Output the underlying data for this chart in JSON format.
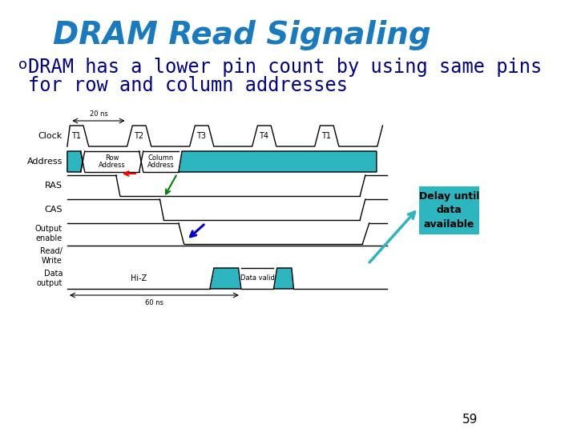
{
  "title": "DRAM Read Signaling",
  "title_color": "#1a7abf",
  "title_fontsize": 28,
  "bullet_text_line1": "DRAM has a lower pin count by using same pins",
  "bullet_text_line2": "for row and column addresses",
  "bullet_color": "#00008B",
  "bullet_fontsize": 17,
  "bg_color": "#ffffff",
  "teal_fill": "#2db5c0",
  "signal_color": "#000000",
  "delay_text": "Delay until\ndata\navailable",
  "page_number": "59",
  "timing_labels": [
    "T1",
    "T2",
    "T3",
    "T4",
    "T1"
  ],
  "row_addr_label": "Row\nAddress",
  "col_addr_label": "Column\nAddress",
  "hi_z_label": "Hi-Z",
  "data_valid_label": "Data valid",
  "ns_20_label": "20 ns",
  "ns_60_label": "60 ns"
}
